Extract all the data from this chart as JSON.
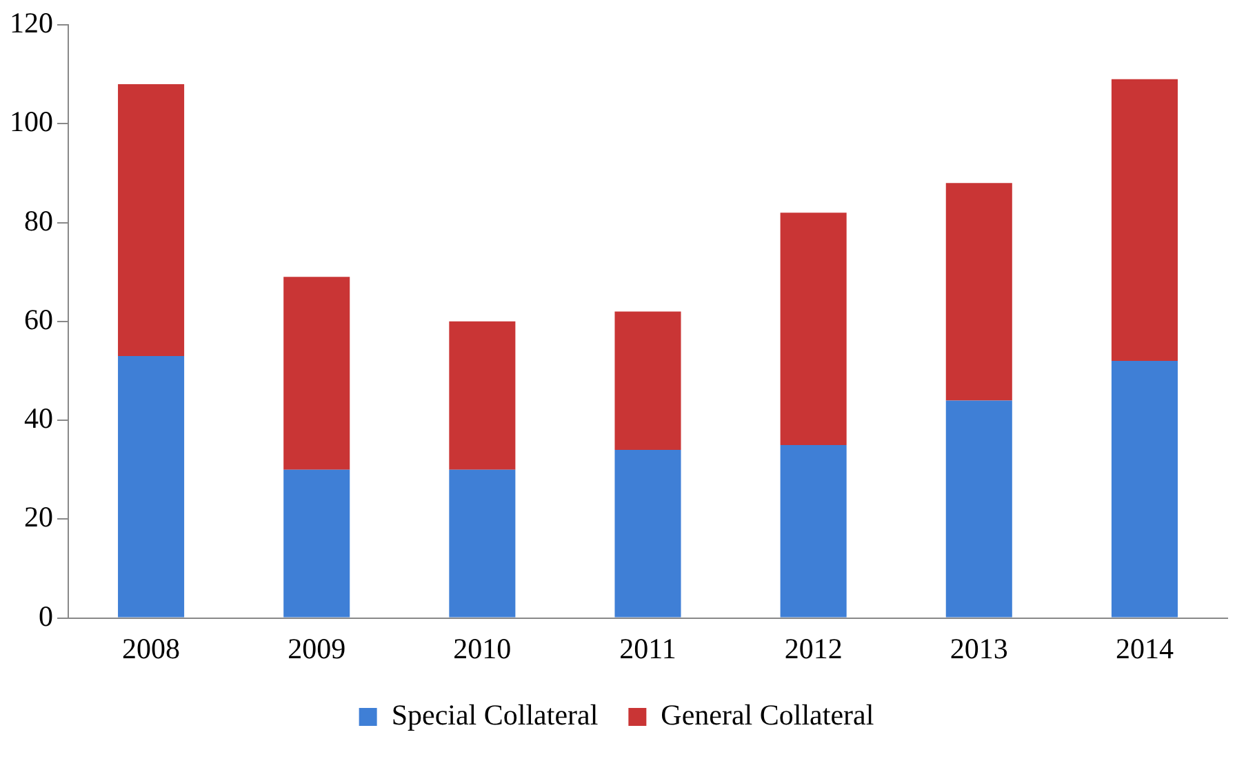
{
  "chart_data": {
    "type": "bar",
    "stacked": true,
    "categories": [
      "2008",
      "2009",
      "2010",
      "2011",
      "2012",
      "2013",
      "2014"
    ],
    "series": [
      {
        "name": "Special Collateral",
        "color": "#3f7fd6",
        "values": [
          53,
          30,
          30,
          34,
          35,
          44,
          52
        ]
      },
      {
        "name": "General Collateral",
        "color": "#c93535",
        "values": [
          55,
          39,
          30,
          28,
          47,
          44,
          57
        ]
      }
    ],
    "ylim": [
      0,
      120
    ],
    "yticks": [
      0,
      20,
      40,
      60,
      80,
      100,
      120
    ],
    "grid": false,
    "legend": "bottom"
  }
}
